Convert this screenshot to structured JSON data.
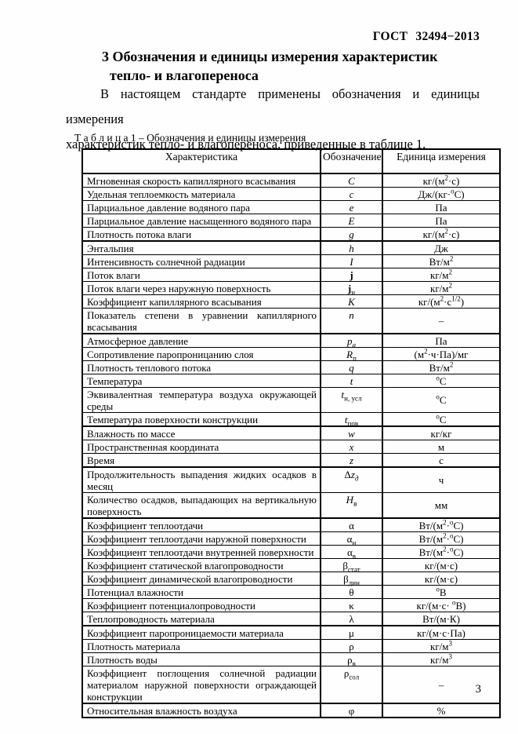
{
  "header": {
    "doc_number": "ГОСТ  32494−2013"
  },
  "section": {
    "title_line1": "3 Обозначения и единицы измерения характеристик",
    "title_line2": "тепло- и влагопереноса"
  },
  "paragraph": {
    "line1": "В настоящем стандарте применены  обозначения и единицы измерения",
    "line2": "характеристик тепло- и влагопереноса, приведенные в таблице 1."
  },
  "table": {
    "caption": "Т а б л и ц а 1 – Обозначения и единицы измерения",
    "headers": [
      "Характеристика",
      "Обозначение",
      "Единица измерения"
    ],
    "rows": [
      {
        "characteristic": "Мгновенная скорость капиллярного всасывания",
        "symbol_html": "<i>C</i>",
        "unit_html": "кг/(м<sup>2</sup>·с)",
        "thick_top": false
      },
      {
        "characteristic": "Удельная теплоемкость материала",
        "symbol_html": "<i>c</i>",
        "unit_html": "Дж/(кг·<sup>о</sup>С)",
        "thick_top": false
      },
      {
        "characteristic": "Парциальное давление водяного пара",
        "symbol_html": "<i>e</i>",
        "unit_html": "Па",
        "thick_top": false
      },
      {
        "characteristic": "Парциальное давление насыщенного водяного пара",
        "symbol_html": "<i>E</i>",
        "unit_html": "Па",
        "thick_top": false
      },
      {
        "characteristic": "Плотность потока влаги",
        "symbol_html": "<i>g</i>",
        "unit_html": "кг/(м<sup>2</sup>·с)",
        "thick_top": false
      },
      {
        "characteristic": "Энтальпия",
        "symbol_html": "<i>h</i>",
        "unit_html": "Дж",
        "thick_top": true
      },
      {
        "characteristic": "Интенсивность солнечной радиации",
        "symbol_html": "<i>I</i>",
        "unit_html": "Вт/м<sup>2</sup>",
        "thick_top": false
      },
      {
        "characteristic": "Поток влаги",
        "symbol_html": "<b>j</b>",
        "unit_html": "кг/м<sup>2</sup>",
        "thick_top": false
      },
      {
        "characteristic": "Поток влаги через наружную поверхность",
        "symbol_html": "<b>j</b><sub>н</sub>",
        "unit_html": "кг/м<sup>2</sup>",
        "thick_top": false
      },
      {
        "characteristic": "Коэффициент капиллярного всасывания",
        "symbol_html": "<i>K</i>",
        "unit_html": "кг/(м<sup>2</sup>·с<sup>1/2</sup>)",
        "thick_top": false
      },
      {
        "characteristic": "Показатель степени в уравнении капиллярного всасывания",
        "symbol_html": "<i>n</i>",
        "unit_html": "–",
        "thick_top": false
      },
      {
        "characteristic": "Атмосферное давление",
        "symbol_html": "<i>p</i><sub><i>а</i></sub>",
        "unit_html": "Па",
        "thick_top": true
      },
      {
        "characteristic": "Сопротивление паропроницанию слоя",
        "symbol_html": "<i>R</i><sub>п</sub>",
        "unit_html": "(м<sup>2</sup>·ч·Па)/мг",
        "thick_top": false
      },
      {
        "characteristic": "Плотность теплового потока",
        "symbol_html": "<i>q</i>",
        "unit_html": "Вт/м<sup>2</sup>",
        "thick_top": false
      },
      {
        "characteristic": "Температура",
        "symbol_html": "<i>t</i>",
        "unit_html": "<sup>о</sup>С",
        "thick_top": false
      },
      {
        "characteristic": "Эквивалентная температура воздуха окружающей среды",
        "symbol_html": "<i>t</i><sub>н, усл</sub>",
        "unit_html": "<sup>о</sup>С",
        "thick_top": false
      },
      {
        "characteristic": "Температура поверхности конструкции",
        "symbol_html": "<i>t</i><sub>пов</sub>",
        "unit_html": "<sup>о</sup>С",
        "thick_top": false
      },
      {
        "characteristic": "Влажность по массе",
        "symbol_html": "<i>w</i>",
        "unit_html": "кг/кг",
        "thick_top": true
      },
      {
        "characteristic": "Пространственная координата",
        "symbol_html": "<i>x</i>",
        "unit_html": "м",
        "thick_top": false
      },
      {
        "characteristic": "Время",
        "symbol_html": "<i>z</i>",
        "unit_html": "с",
        "thick_top": false
      },
      {
        "characteristic": "Продолжительность выпадения жидких осадков в месяц",
        "symbol_html": "Δ<i>z</i><sub><i>д</i></sub>",
        "unit_html": "ч",
        "thick_top": true
      },
      {
        "characteristic": "Количество осадков, выпадающих на вертикальную поверхность",
        "symbol_html": "<i>H</i><sub>в</sub>",
        "unit_html": "мм",
        "thick_top": false
      },
      {
        "characteristic": "Коэффициент теплоотдачи",
        "symbol_html": "α",
        "unit_html": "Вт/(м<sup>2</sup>·<sup>о</sup>С)",
        "thick_top": true
      },
      {
        "characteristic": "Коэффициент теплоотдачи наружной поверхности",
        "symbol_html": "α<sub>н</sub>",
        "unit_html": "Вт/(м<sup>2</sup>·<sup>о</sup>С)",
        "thick_top": false
      },
      {
        "characteristic": "Коэффициент теплоотдачи внутренней поверхности",
        "symbol_html": "α<sub>в</sub>",
        "unit_html": "Вт/(м<sup>2</sup>·<sup>о</sup>С)",
        "thick_top": false
      },
      {
        "characteristic": "Коэффициент статической влагопроводности",
        "symbol_html": "β<sub>стат</sub>",
        "unit_html": "кг/(м·с)",
        "thick_top": false
      },
      {
        "characteristic": "Коэффициент динамической влагопроводности",
        "symbol_html": "β<sub>дин</sub>",
        "unit_html": "кг/(м·с)",
        "thick_top": false
      },
      {
        "characteristic": "Потенциал влажности",
        "symbol_html": "θ",
        "unit_html": "<sup>о</sup>В",
        "thick_top": false
      },
      {
        "characteristic": "Коэффициент потенциалопроводности",
        "symbol_html": "κ",
        "unit_html": "кг/(м·с· <sup>о</sup>В)",
        "thick_top": false
      },
      {
        "characteristic": "Теплопроводность материала",
        "symbol_html": "λ",
        "unit_html": "Вт/(м·К)",
        "thick_top": false
      },
      {
        "characteristic": "Коэффициент паропроницаемости материала",
        "symbol_html": "μ",
        "unit_html": "кг/(м·с·Па)",
        "thick_top": true
      },
      {
        "characteristic": "Плотность материала",
        "symbol_html": "ρ",
        "unit_html": "кг/м<sup>3</sup>",
        "thick_top": false
      },
      {
        "characteristic": "Плотность воды",
        "symbol_html": "ρ<sub>в</sub>",
        "unit_html": "кг/м<sup>3</sup>",
        "thick_top": false
      },
      {
        "characteristic": "Коэффициент поглощения солнечной радиации материалом наружной поверхности ограждающей конструкции",
        "symbol_html": "ρ<sub>сол</sub>",
        "unit_html": "–",
        "thick_top": false
      },
      {
        "characteristic": "Относительная влажность воздуха",
        "symbol_html": "φ",
        "unit_html": "%",
        "thick_top": true
      }
    ]
  },
  "footer": {
    "page_number": "3"
  }
}
